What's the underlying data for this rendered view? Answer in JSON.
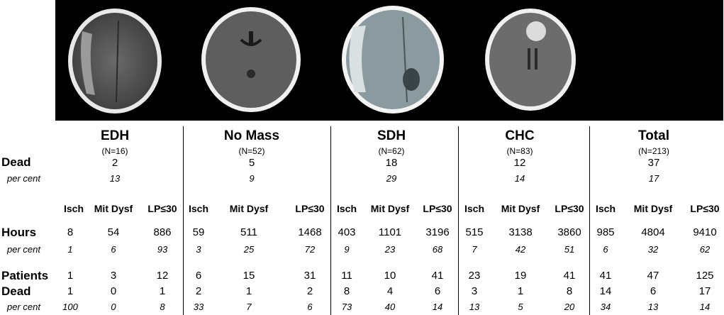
{
  "row_labels": {
    "dead": "Dead",
    "per_cent": "per cent",
    "hours": "Hours",
    "patients": "Patients",
    "dead2": "Dead"
  },
  "column_headers": [
    "Isch",
    "Mit Dysf",
    "LP≤30"
  ],
  "groups": [
    {
      "name": "EDH",
      "n": "(N=16)",
      "dead": "2",
      "dead_pct": "13",
      "hours": [
        "8",
        "54",
        "886"
      ],
      "hours_pct": [
        "1",
        "6",
        "93"
      ],
      "patients": [
        "1",
        "3",
        "12"
      ],
      "dead_counts": [
        "1",
        "0",
        "1"
      ],
      "dead_pct_cols": [
        "100",
        "0",
        "8"
      ]
    },
    {
      "name": "No Mass",
      "n": "(N=52)",
      "dead": "5",
      "dead_pct": "9",
      "hours": [
        "59",
        "511",
        "1468"
      ],
      "hours_pct": [
        "3",
        "25",
        "72"
      ],
      "patients": [
        "6",
        "15",
        "31"
      ],
      "dead_counts": [
        "2",
        "1",
        "2"
      ],
      "dead_pct_cols": [
        "33",
        "7",
        "6"
      ]
    },
    {
      "name": "SDH",
      "n": "(N=62)",
      "dead": "18",
      "dead_pct": "29",
      "hours": [
        "403",
        "1101",
        "3196"
      ],
      "hours_pct": [
        "9",
        "23",
        "68"
      ],
      "patients": [
        "11",
        "10",
        "41"
      ],
      "dead_counts": [
        "8",
        "4",
        "6"
      ],
      "dead_pct_cols": [
        "73",
        "40",
        "14"
      ]
    },
    {
      "name": "CHC",
      "n": "(N=83)",
      "dead": "12",
      "dead_pct": "14",
      "hours": [
        "515",
        "3138",
        "3860"
      ],
      "hours_pct": [
        "7",
        "42",
        "51"
      ],
      "patients": [
        "23",
        "19",
        "41"
      ],
      "dead_counts": [
        "3",
        "1",
        "8"
      ],
      "dead_pct_cols": [
        "13",
        "5",
        "20"
      ]
    },
    {
      "name": "Total",
      "n": "(N=213)",
      "dead": "37",
      "dead_pct": "17",
      "hours": [
        "985",
        "4804",
        "9410"
      ],
      "hours_pct": [
        "6",
        "32",
        "62"
      ],
      "patients": [
        "41",
        "47",
        "125"
      ],
      "dead_counts": [
        "14",
        "6",
        "17"
      ],
      "dead_pct_cols": [
        "34",
        "13",
        "14"
      ]
    }
  ],
  "scans": [
    {
      "icon": "ct-scan-edh-icon"
    },
    {
      "icon": "ct-scan-no-mass-icon"
    },
    {
      "icon": "ct-scan-sdh-icon"
    },
    {
      "icon": "ct-scan-chc-icon"
    }
  ],
  "colors": {
    "background": "#ffffff",
    "scan_background": "#000000",
    "text": "#000000"
  }
}
